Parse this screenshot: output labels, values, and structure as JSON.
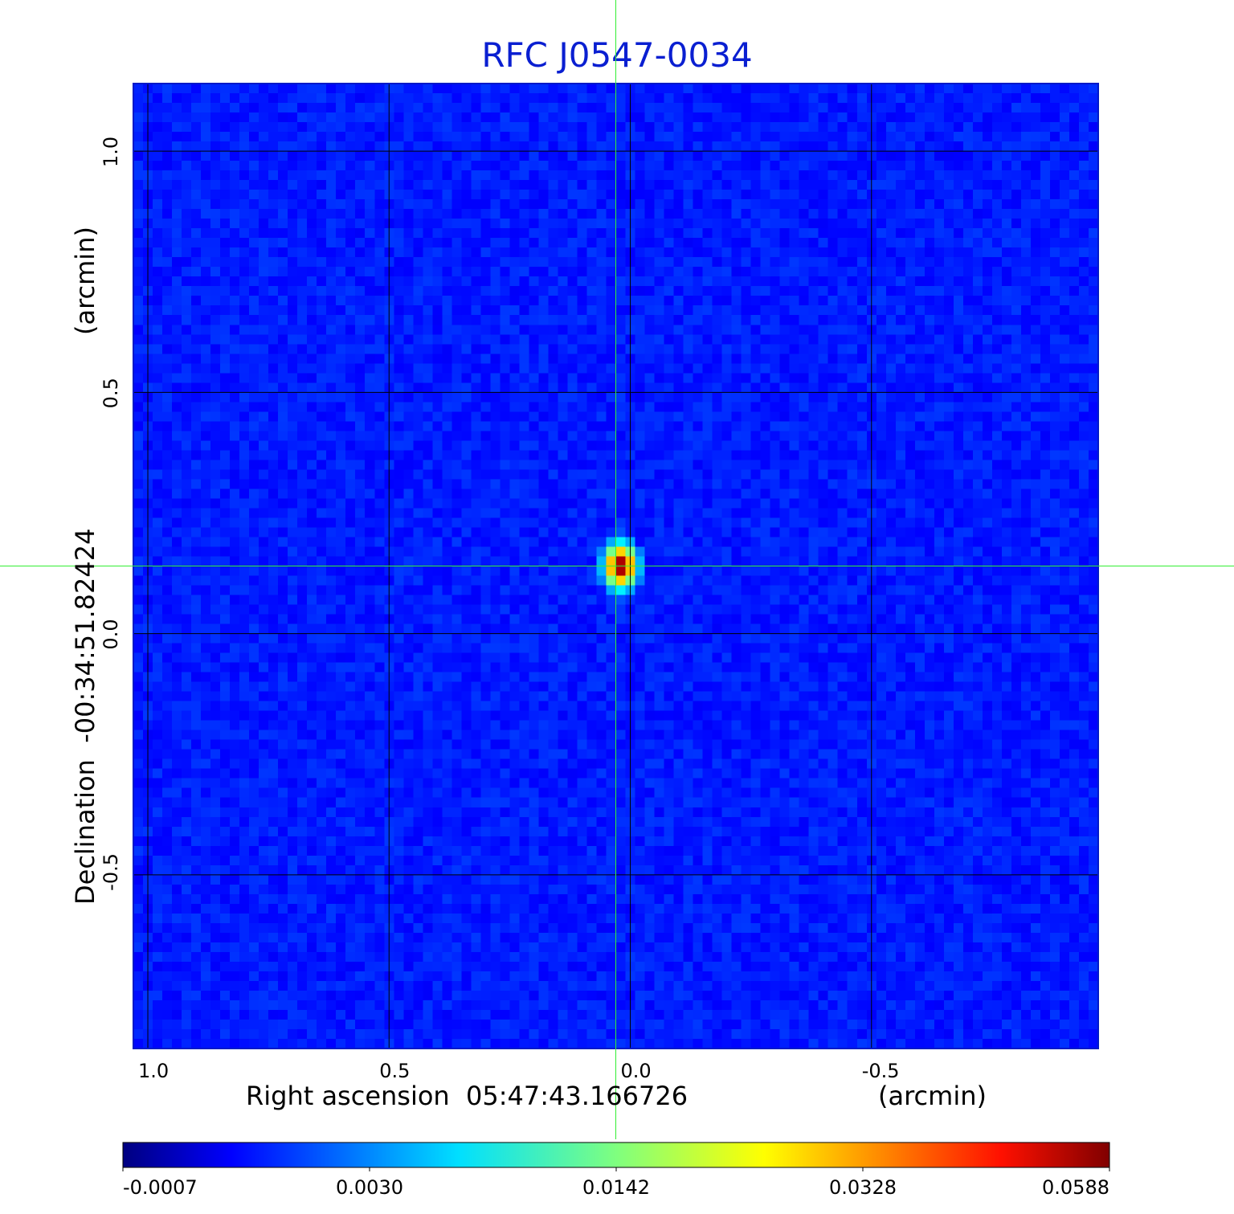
{
  "chart_data": {
    "type": "heatmap",
    "title": "RFC J0547-0034",
    "xlabel": "Right ascension  05:47:43.166726",
    "xunit": "(arcmin)",
    "ylabel": "Declination  -00:34:51.82424",
    "yunit": "(arcmin)",
    "x_ticks": [
      1.0,
      0.5,
      0.0,
      -0.5
    ],
    "x_tick_labels": [
      "1.0",
      "0.5",
      "0.0",
      "-0.5"
    ],
    "y_ticks": [
      1.0,
      0.5,
      0.0,
      -0.5
    ],
    "y_tick_labels": [
      "1.0",
      "0.5",
      "0.0",
      "-0.5"
    ],
    "xlim": [
      1.03,
      -0.97
    ],
    "ylim": [
      -0.86,
      1.14
    ],
    "grid": true,
    "colormap": "jet",
    "colorbar_ticks": [
      "-0.0007",
      "0.0030",
      "0.0142",
      "0.0328",
      "0.0588"
    ],
    "source": {
      "x": 0.02,
      "y": 0.14,
      "peak": 0.0588
    },
    "crosshair": {
      "x": 0.03,
      "y": 0.14,
      "color": "#33ee33"
    },
    "colors": {
      "title": "#0a1fd1",
      "grid": "#000000"
    }
  }
}
